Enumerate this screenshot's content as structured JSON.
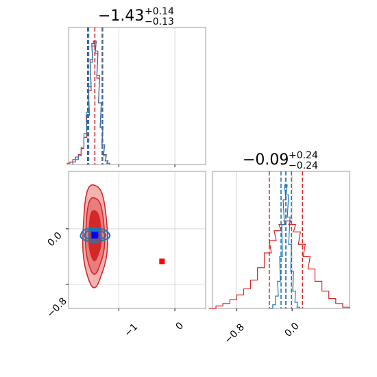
{
  "chart_data": {
    "type": "corner",
    "parameters": [
      "",
      ""
    ],
    "titles": [
      {
        "parameter": 0,
        "median": "−1.43",
        "plus": "+0.14",
        "minus": "−0.13"
      },
      {
        "parameter": 1,
        "median": "−0.09",
        "plus": "+0.24",
        "minus": "−0.24"
      }
    ],
    "axes": {
      "param0_range": [
        -1.9,
        0.55
      ],
      "param1_range": [
        -1.15,
        0.83
      ],
      "param0_ticks": [
        -1,
        0
      ],
      "param0_tick_labels": [
        "−1",
        "0"
      ],
      "param1_ticks": [
        -0.8,
        0.0
      ],
      "param1_tick_labels": [
        "−0.8",
        "0.0"
      ],
      "grid": true
    },
    "colors": {
      "red": "#d62728",
      "blue": "#1f77b4",
      "red_fill_light": "#f2b3b3",
      "red_fill_mid": "#e87e7e",
      "marker_blue": "#0000ff",
      "marker_red": "#ff0000"
    },
    "series": [
      {
        "color": "red",
        "param0_quantiles": [
          -1.56,
          -1.43,
          -1.29
        ],
        "param1_quantiles": [
          -0.33,
          -0.09,
          0.15
        ],
        "param0_hist": [
          {
            "x": -1.9,
            "y": 0.01
          },
          {
            "x": -1.85,
            "y": 0.02
          },
          {
            "x": -1.8,
            "y": 0.04
          },
          {
            "x": -1.75,
            "y": 0.06
          },
          {
            "x": -1.7,
            "y": 0.08
          },
          {
            "x": -1.65,
            "y": 0.13
          },
          {
            "x": -1.6,
            "y": 0.22
          },
          {
            "x": -1.55,
            "y": 0.4
          },
          {
            "x": -1.52,
            "y": 0.6
          },
          {
            "x": -1.49,
            "y": 0.85
          },
          {
            "x": -1.46,
            "y": 0.98
          },
          {
            "x": -1.43,
            "y": 1.0
          },
          {
            "x": -1.4,
            "y": 0.9
          },
          {
            "x": -1.37,
            "y": 0.7
          },
          {
            "x": -1.34,
            "y": 0.5
          },
          {
            "x": -1.31,
            "y": 0.3
          },
          {
            "x": -1.28,
            "y": 0.16
          },
          {
            "x": -1.25,
            "y": 0.07
          },
          {
            "x": -1.22,
            "y": 0.03
          },
          {
            "x": -1.19,
            "y": 0.01
          }
        ],
        "param1_hist": [
          {
            "x": -1.15,
            "y": 0.0
          },
          {
            "x": -1.05,
            "y": 0.02
          },
          {
            "x": -0.95,
            "y": 0.04
          },
          {
            "x": -0.85,
            "y": 0.07
          },
          {
            "x": -0.75,
            "y": 0.11
          },
          {
            "x": -0.65,
            "y": 0.16
          },
          {
            "x": -0.55,
            "y": 0.23
          },
          {
            "x": -0.45,
            "y": 0.33
          },
          {
            "x": -0.35,
            "y": 0.45
          },
          {
            "x": -0.28,
            "y": 0.55
          },
          {
            "x": -0.21,
            "y": 0.63
          },
          {
            "x": -0.14,
            "y": 0.68
          },
          {
            "x": -0.07,
            "y": 0.71
          },
          {
            "x": 0.0,
            "y": 0.68
          },
          {
            "x": 0.07,
            "y": 0.62
          },
          {
            "x": 0.14,
            "y": 0.52
          },
          {
            "x": 0.21,
            "y": 0.42
          },
          {
            "x": 0.28,
            "y": 0.32
          },
          {
            "x": 0.38,
            "y": 0.22
          },
          {
            "x": 0.48,
            "y": 0.14
          },
          {
            "x": 0.58,
            "y": 0.08
          },
          {
            "x": 0.68,
            "y": 0.04
          },
          {
            "x": 0.78,
            "y": 0.01
          }
        ],
        "contours": {
          "center": [
            -1.43,
            -0.09
          ],
          "levels": [
            {
              "rx": 0.22,
              "ry": 0.74
            },
            {
              "rx": 0.17,
              "ry": 0.55
            },
            {
              "rx": 0.11,
              "ry": 0.36
            }
          ]
        },
        "marker": {
          "x": -0.23,
          "y": -0.47
        }
      },
      {
        "color": "blue",
        "param0_quantiles": [
          -1.54,
          -1.42,
          -1.3
        ],
        "param1_quantiles": [
          -0.16,
          -0.09,
          -0.01
        ],
        "param0_hist": [
          {
            "x": -1.8,
            "y": 0.02
          },
          {
            "x": -1.75,
            "y": 0.04
          },
          {
            "x": -1.7,
            "y": 0.07
          },
          {
            "x": -1.65,
            "y": 0.14
          },
          {
            "x": -1.6,
            "y": 0.25
          },
          {
            "x": -1.56,
            "y": 0.42
          },
          {
            "x": -1.52,
            "y": 0.63
          },
          {
            "x": -1.49,
            "y": 0.83
          },
          {
            "x": -1.46,
            "y": 0.96
          },
          {
            "x": -1.43,
            "y": 1.0
          },
          {
            "x": -1.4,
            "y": 0.92
          },
          {
            "x": -1.37,
            "y": 0.72
          },
          {
            "x": -1.34,
            "y": 0.5
          },
          {
            "x": -1.31,
            "y": 0.3
          },
          {
            "x": -1.28,
            "y": 0.16
          },
          {
            "x": -1.25,
            "y": 0.08
          },
          {
            "x": -1.22,
            "y": 0.03
          },
          {
            "x": -1.19,
            "y": 0.01
          }
        ],
        "param1_hist": [
          {
            "x": -0.3,
            "y": 0.0
          },
          {
            "x": -0.26,
            "y": 0.03
          },
          {
            "x": -0.22,
            "y": 0.1
          },
          {
            "x": -0.19,
            "y": 0.22
          },
          {
            "x": -0.16,
            "y": 0.42
          },
          {
            "x": -0.13,
            "y": 0.68
          },
          {
            "x": -0.11,
            "y": 0.88
          },
          {
            "x": -0.09,
            "y": 1.0
          },
          {
            "x": -0.07,
            "y": 0.92
          },
          {
            "x": -0.05,
            "y": 0.74
          },
          {
            "x": -0.03,
            "y": 0.52
          },
          {
            "x": 0.0,
            "y": 0.3
          },
          {
            "x": 0.03,
            "y": 0.14
          },
          {
            "x": 0.06,
            "y": 0.05
          },
          {
            "x": 0.09,
            "y": 0.01
          }
        ],
        "contours": {
          "center": [
            -1.43,
            -0.09
          ],
          "levels": [
            {
              "rx": 0.26,
              "ry": 0.1
            },
            {
              "rx": 0.19,
              "ry": 0.07
            },
            {
              "rx": 0.11,
              "ry": 0.045
            }
          ]
        },
        "marker": {
          "x": -1.43,
          "y": -0.09
        }
      }
    ]
  }
}
